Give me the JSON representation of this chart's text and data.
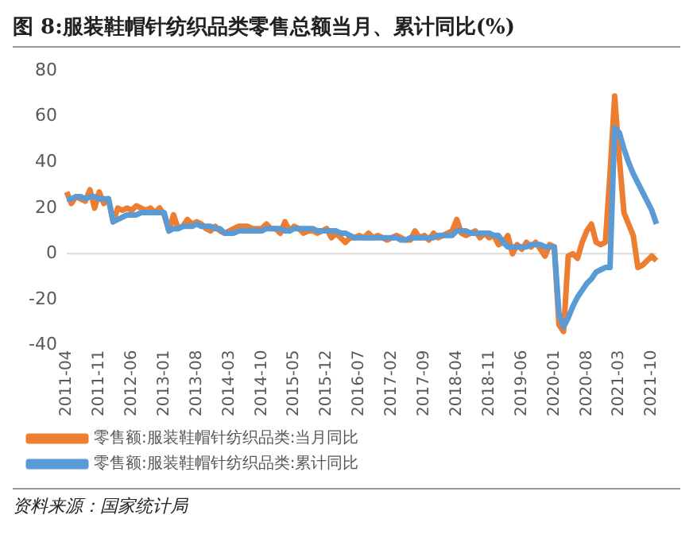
{
  "chart_data": {
    "type": "line",
    "title": "图 8:服装鞋帽针纺织品类零售总额当月、累计同比(%)",
    "categories": [
      "2011-04",
      null,
      null,
      null,
      null,
      null,
      null,
      "2011-11",
      null,
      null,
      null,
      null,
      null,
      null,
      "2012-06",
      null,
      null,
      null,
      null,
      null,
      null,
      "2013-01",
      null,
      null,
      null,
      null,
      null,
      null,
      "2013-08",
      null,
      null,
      null,
      null,
      null,
      null,
      "2014-03",
      null,
      null,
      null,
      null,
      null,
      null,
      "2014-10",
      null,
      null,
      null,
      null,
      null,
      null,
      "2015-05",
      null,
      null,
      null,
      null,
      null,
      null,
      "2015-12",
      null,
      null,
      null,
      null,
      null,
      null,
      "2016-07",
      null,
      null,
      null,
      null,
      null,
      null,
      "2017-02",
      null,
      null,
      null,
      null,
      null,
      null,
      "2017-09",
      null,
      null,
      null,
      null,
      null,
      null,
      "2018-04",
      null,
      null,
      null,
      null,
      null,
      null,
      "2018-11",
      null,
      null,
      null,
      null,
      null,
      null,
      "2019-06",
      null,
      null,
      null,
      null,
      null,
      null,
      "2020-01",
      null,
      null,
      null,
      null,
      null,
      null,
      "2020-08",
      null,
      null,
      null,
      null,
      null,
      null,
      "2021-03",
      null,
      null,
      null,
      null,
      null,
      null,
      "2021-10",
      null
    ],
    "series": [
      {
        "name": "零售额:服装鞋帽针纺织品类:当月同比",
        "color": "#ed7d31",
        "values": [
          27,
          22,
          25,
          24,
          23,
          28,
          20,
          27,
          22,
          24,
          14,
          20,
          19,
          20,
          19,
          21,
          20,
          19,
          20,
          18,
          20,
          17,
          10,
          17,
          11,
          12,
          15,
          13,
          14,
          13,
          11,
          10,
          12,
          10,
          9,
          10,
          11,
          12,
          12,
          12,
          11,
          11,
          11,
          13,
          11,
          11,
          9,
          14,
          10,
          12,
          11,
          9,
          10,
          10,
          9,
          10,
          11,
          7,
          9,
          7,
          5,
          7,
          7,
          8,
          7,
          9,
          7,
          8,
          7,
          6,
          7,
          8,
          7,
          6,
          6,
          10,
          7,
          8,
          6,
          9,
          7,
          8,
          9,
          10,
          15,
          9,
          8,
          9,
          10,
          7,
          9,
          7,
          8,
          4,
          5,
          8,
          0,
          4,
          2,
          5,
          3,
          5,
          2,
          -1,
          4,
          3,
          -31,
          -34,
          -1,
          0,
          -2,
          5,
          10,
          13,
          5,
          4,
          5,
          35,
          69,
          42,
          18,
          13,
          8,
          -6,
          -5,
          -3,
          -1,
          -3
        ]
      },
      {
        "name": "零售额:服装鞋帽针纺织品类:累计同比",
        "color": "#5b9bd5",
        "values": [
          24,
          24,
          25,
          25,
          24,
          25,
          25,
          24,
          24,
          24,
          14,
          15,
          16,
          17,
          17,
          17,
          18,
          18,
          18,
          18,
          18,
          18,
          10,
          11,
          11,
          12,
          12,
          12,
          13,
          12,
          12,
          12,
          11,
          11,
          9,
          9,
          9,
          10,
          10,
          10,
          10,
          10,
          10,
          11,
          11,
          11,
          11,
          10,
          10,
          11,
          11,
          11,
          11,
          11,
          10,
          10,
          10,
          10,
          10,
          9,
          9,
          8,
          7,
          7,
          7,
          7,
          7,
          7,
          7,
          7,
          7,
          7,
          6,
          6,
          7,
          7,
          7,
          7,
          7,
          7,
          8,
          8,
          8,
          8,
          10,
          10,
          10,
          9,
          9,
          9,
          9,
          9,
          8,
          8,
          5,
          3,
          3,
          3,
          3,
          3,
          4,
          4,
          4,
          3,
          3,
          3,
          -26,
          -32,
          -28,
          -23,
          -19,
          -16,
          -13,
          -11,
          -8,
          -7,
          -6,
          -6,
          55,
          53,
          46,
          40,
          35,
          31,
          27,
          23,
          19,
          13
        ]
      }
    ],
    "ylim": [
      -40,
      80
    ],
    "yticks": [
      -40,
      -20,
      0,
      20,
      40,
      60,
      80
    ],
    "grid": false,
    "ref_lines": [
      {
        "axis": "y",
        "value": 0,
        "color": "#d9d9d9"
      }
    ],
    "legend": "bottom",
    "marker": "none",
    "line_style": "solid",
    "annotations": [
      "资料来源：国家统计局"
    ]
  }
}
